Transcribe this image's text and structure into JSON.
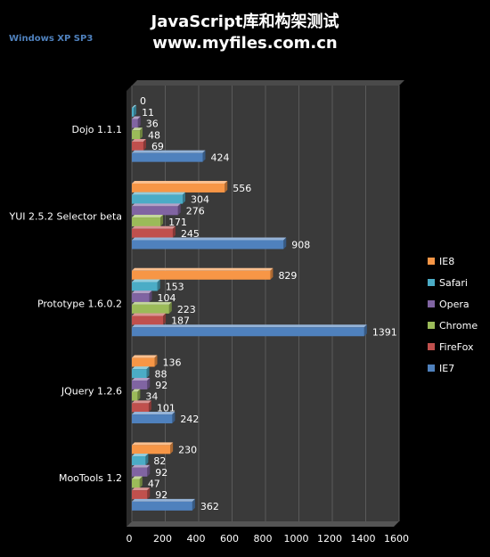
{
  "page": {
    "title_line1": "JavaScript库和构架测试",
    "title_line2": "www.myfiles.com.cn",
    "subtitle": "Windows  XP  SP3"
  },
  "colors": {
    "background": "#000000",
    "plot_area": "#3a3a3a",
    "gridline": "#5a5a5a",
    "IE8": "#f79646",
    "Safari": "#4bacc6",
    "Opera": "#8064a2",
    "Chrome": "#9bbb59",
    "FireFox": "#c0504d",
    "IE7": "#4f81bd"
  },
  "chart_data": {
    "type": "bar",
    "orientation": "horizontal",
    "title": "JavaScript库和构架测试",
    "subtitle": "www.myfiles.com.cn",
    "categories": [
      "Dojo 1.1.1",
      "YUI 2.5.2 Selector beta",
      "Prototype 1.6.0.2",
      "JQuery 1.2.6",
      "MooTools 1.2"
    ],
    "series": [
      {
        "name": "IE8",
        "values": [
          0,
          556,
          829,
          136,
          230
        ]
      },
      {
        "name": "Safari",
        "values": [
          11,
          304,
          153,
          88,
          82
        ]
      },
      {
        "name": "Opera",
        "values": [
          36,
          276,
          104,
          92,
          92
        ]
      },
      {
        "name": "Chrome",
        "values": [
          48,
          171,
          223,
          34,
          47
        ]
      },
      {
        "name": "FireFox",
        "values": [
          69,
          245,
          187,
          101,
          92
        ]
      },
      {
        "name": "IE7",
        "values": [
          424,
          908,
          1391,
          242,
          362
        ]
      }
    ],
    "xlim": [
      0,
      1600
    ],
    "xticks": [
      0,
      200,
      400,
      600,
      800,
      1000,
      1200,
      1400,
      1600
    ],
    "grid": "vertical",
    "legend": {
      "position": "right",
      "entries": [
        "IE8",
        "Safari",
        "Opera",
        "Chrome",
        "FireFox",
        "IE7"
      ]
    }
  }
}
